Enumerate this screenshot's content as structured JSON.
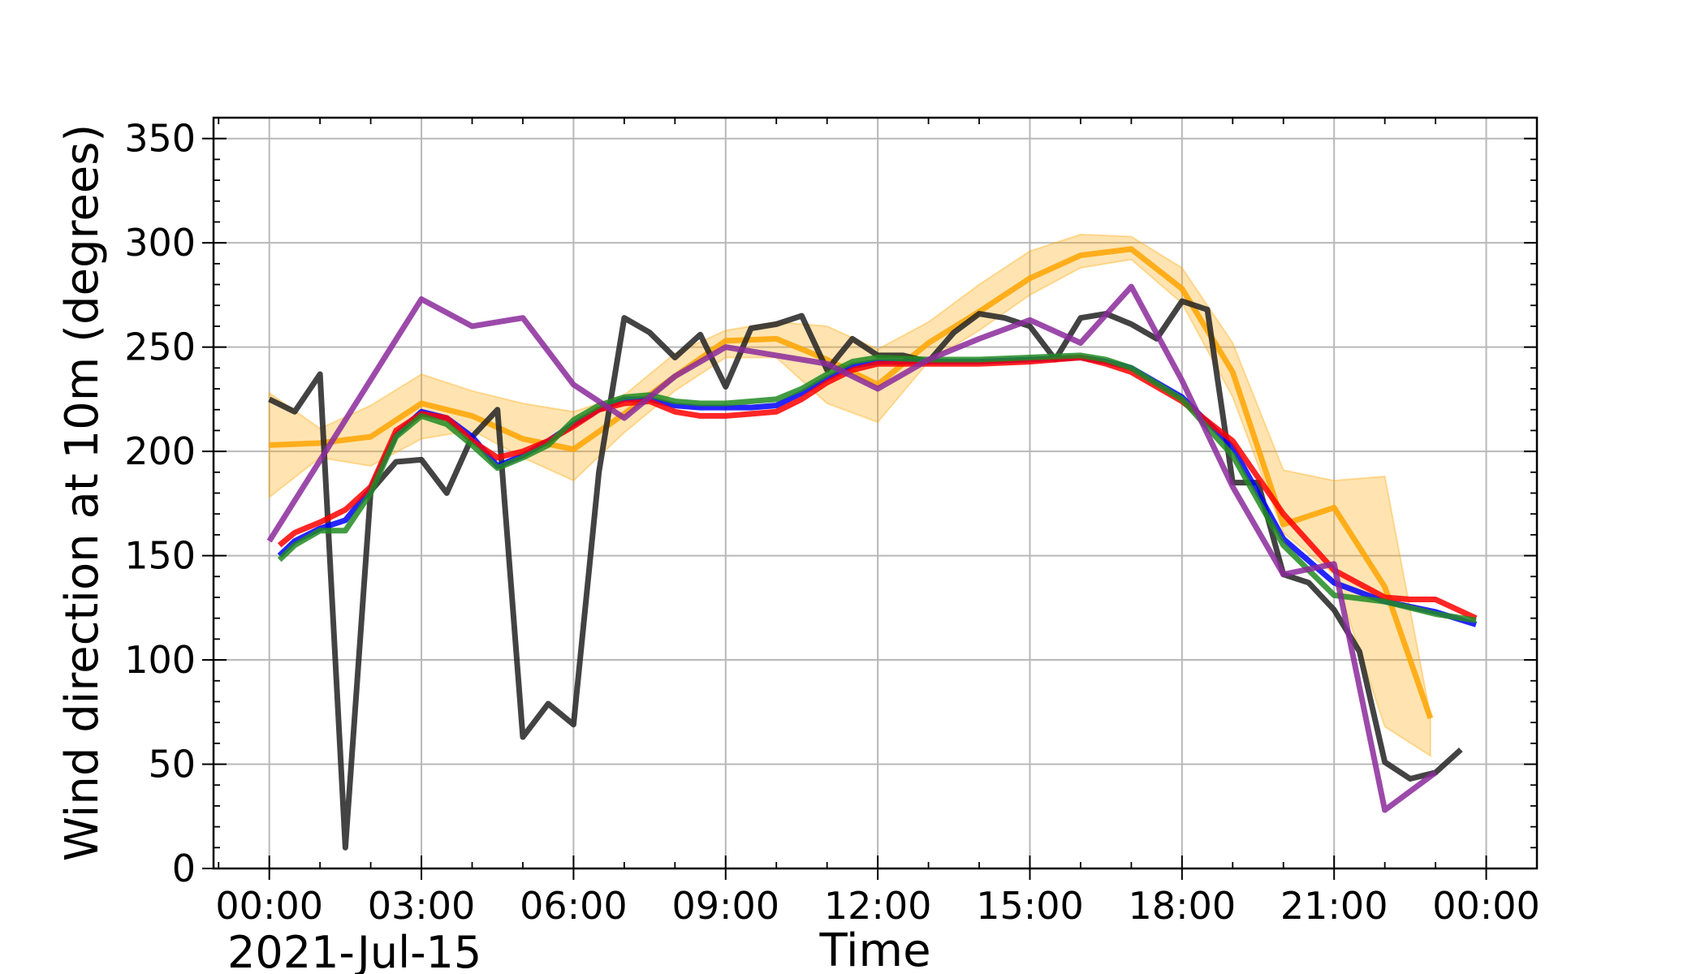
{
  "chart_data": {
    "type": "line",
    "title": "",
    "xlabel": "Time",
    "ylabel": "Wind direction at 10m (degrees)",
    "date_label": "2021-Jul-15",
    "x_unit": "hours since 2021-07-15 00:00",
    "xlim": [
      -1.1,
      25.0
    ],
    "ylim": [
      0,
      360
    ],
    "x_ticks": [
      {
        "x": 0,
        "label": "00:00"
      },
      {
        "x": 3,
        "label": "03:00"
      },
      {
        "x": 6,
        "label": "06:00"
      },
      {
        "x": 9,
        "label": "09:00"
      },
      {
        "x": 12,
        "label": "12:00"
      },
      {
        "x": 15,
        "label": "15:00"
      },
      {
        "x": 18,
        "label": "18:00"
      },
      {
        "x": 21,
        "label": "21:00"
      },
      {
        "x": 24,
        "label": "00:00"
      }
    ],
    "y_ticks": [
      {
        "y": 0,
        "label": "0"
      },
      {
        "y": 50,
        "label": "50"
      },
      {
        "y": 100,
        "label": "100"
      },
      {
        "y": 150,
        "label": "150"
      },
      {
        "y": 200,
        "label": "200"
      },
      {
        "y": 250,
        "label": "250"
      },
      {
        "y": 300,
        "label": "300"
      },
      {
        "y": 350,
        "label": "350"
      }
    ],
    "grid": true,
    "legend": "none",
    "band": {
      "color": "#ffa500",
      "opacity": 0.3,
      "x": [
        0,
        1,
        2,
        3,
        4,
        5,
        6,
        7,
        8,
        9,
        10,
        11,
        12,
        13,
        14,
        15,
        16,
        17,
        18,
        19,
        20,
        21,
        22,
        22.9
      ],
      "lower": [
        178,
        197,
        193,
        206,
        210,
        197,
        186,
        209,
        229,
        245,
        245,
        223,
        214,
        243,
        258,
        275,
        288,
        292,
        271,
        226,
        161,
        141,
        68,
        54
      ],
      "upper": [
        228,
        211,
        222,
        237,
        229,
        223,
        219,
        227,
        247,
        258,
        262,
        260,
        249,
        262,
        280,
        296,
        304,
        303,
        288,
        252,
        191,
        186,
        188,
        73
      ]
    },
    "series": [
      {
        "color": "#ffa500",
        "x": [
          0,
          1,
          2,
          3,
          4,
          5,
          6,
          7,
          8,
          9,
          10,
          11,
          12,
          13,
          14,
          15,
          16,
          17,
          18,
          19,
          20,
          21,
          22,
          22.9
        ],
        "y": [
          203,
          204,
          207,
          223,
          217,
          206,
          201,
          218,
          236,
          253,
          254,
          244,
          232,
          252,
          267,
          283,
          294,
          297,
          278,
          238,
          165,
          173,
          135,
          72
        ]
      },
      {
        "color": "#222222",
        "x": [
          0,
          0.5,
          1,
          1.5,
          2,
          2.5,
          3,
          3.5,
          4,
          4.5,
          5,
          5.5,
          6,
          6.5,
          7,
          7.5,
          8,
          8.5,
          9,
          9.5,
          10,
          10.5,
          11,
          11.5,
          12,
          12.5,
          13,
          13.5,
          14,
          14.5,
          15,
          15.5,
          16,
          16.5,
          17,
          17.5,
          18,
          18.5,
          19,
          19.5,
          20,
          20.5,
          21,
          21.5,
          22,
          22.5,
          23,
          23.5
        ],
        "y": [
          225,
          219,
          237,
          10,
          181,
          195,
          196,
          180,
          207,
          220,
          63,
          79,
          69,
          190,
          264,
          257,
          245,
          256,
          231,
          259,
          261,
          265,
          239,
          254,
          246,
          246,
          243,
          257,
          266,
          264,
          260,
          244,
          264,
          266,
          261,
          254,
          272,
          268,
          185,
          185,
          141,
          137,
          124,
          104,
          51,
          43,
          46,
          57
        ]
      },
      {
        "color": "#0000ff",
        "x": [
          0.2,
          0.5,
          1,
          1.5,
          2,
          2.5,
          3,
          3.5,
          4,
          4.5,
          5,
          5.5,
          6,
          6.5,
          7,
          7.5,
          8,
          8.5,
          9,
          9.5,
          10,
          10.5,
          11,
          11.5,
          12,
          13,
          14,
          15,
          16,
          16.5,
          17,
          18,
          19,
          20,
          21,
          22,
          23,
          23.8
        ],
        "y": [
          150,
          157,
          163,
          167,
          182,
          208,
          219,
          216,
          207,
          193,
          198,
          205,
          213,
          220,
          225,
          225,
          222,
          221,
          221,
          221,
          222,
          228,
          235,
          241,
          243,
          243,
          243,
          244,
          245,
          243,
          240,
          226,
          202,
          158,
          137,
          128,
          123,
          117
        ]
      },
      {
        "color": "#ff0000",
        "x": [
          0.2,
          0.5,
          1,
          1.5,
          2,
          2.5,
          3,
          3.5,
          4,
          4.5,
          5,
          5.5,
          6,
          6.5,
          7,
          7.5,
          8,
          8.5,
          9,
          9.5,
          10,
          10.5,
          11,
          11.5,
          12,
          13,
          14,
          15,
          16,
          16.5,
          17,
          18,
          19,
          20,
          21,
          22,
          22.5,
          23,
          23.8
        ],
        "y": [
          155,
          161,
          166,
          172,
          183,
          210,
          218,
          216,
          205,
          197,
          200,
          205,
          212,
          220,
          223,
          224,
          219,
          217,
          217,
          218,
          219,
          225,
          233,
          239,
          242,
          242,
          242,
          243,
          245,
          242,
          238,
          224,
          205,
          170,
          143,
          130,
          129,
          129,
          120
        ]
      },
      {
        "color": "#228b22",
        "x": [
          0.2,
          0.5,
          1,
          1.5,
          2,
          2.5,
          3,
          3.5,
          4,
          4.5,
          5,
          5.5,
          6,
          6.5,
          7,
          7.5,
          8,
          8.5,
          9,
          9.5,
          10,
          10.5,
          11,
          11.5,
          12,
          13,
          14,
          15,
          16,
          16.5,
          17,
          18,
          19,
          20,
          21,
          22,
          23,
          23.8
        ],
        "y": [
          148,
          155,
          162,
          162,
          180,
          207,
          217,
          213,
          203,
          192,
          197,
          203,
          215,
          222,
          226,
          227,
          224,
          223,
          223,
          224,
          225,
          230,
          237,
          243,
          245,
          244,
          244,
          245,
          246,
          244,
          240,
          225,
          198,
          155,
          131,
          128,
          122,
          119
        ]
      },
      {
        "color": "#8b2a9b",
        "x": [
          0,
          3,
          4,
          5,
          6,
          7,
          8,
          9,
          10,
          11,
          12,
          13,
          14,
          15,
          16,
          17,
          18,
          19,
          20,
          21,
          22,
          23
        ],
        "y": [
          157,
          273,
          260,
          264,
          232,
          216,
          236,
          250,
          246,
          242,
          230,
          244,
          254,
          263,
          252,
          279,
          234,
          183,
          141,
          146,
          28,
          46
        ]
      }
    ]
  }
}
